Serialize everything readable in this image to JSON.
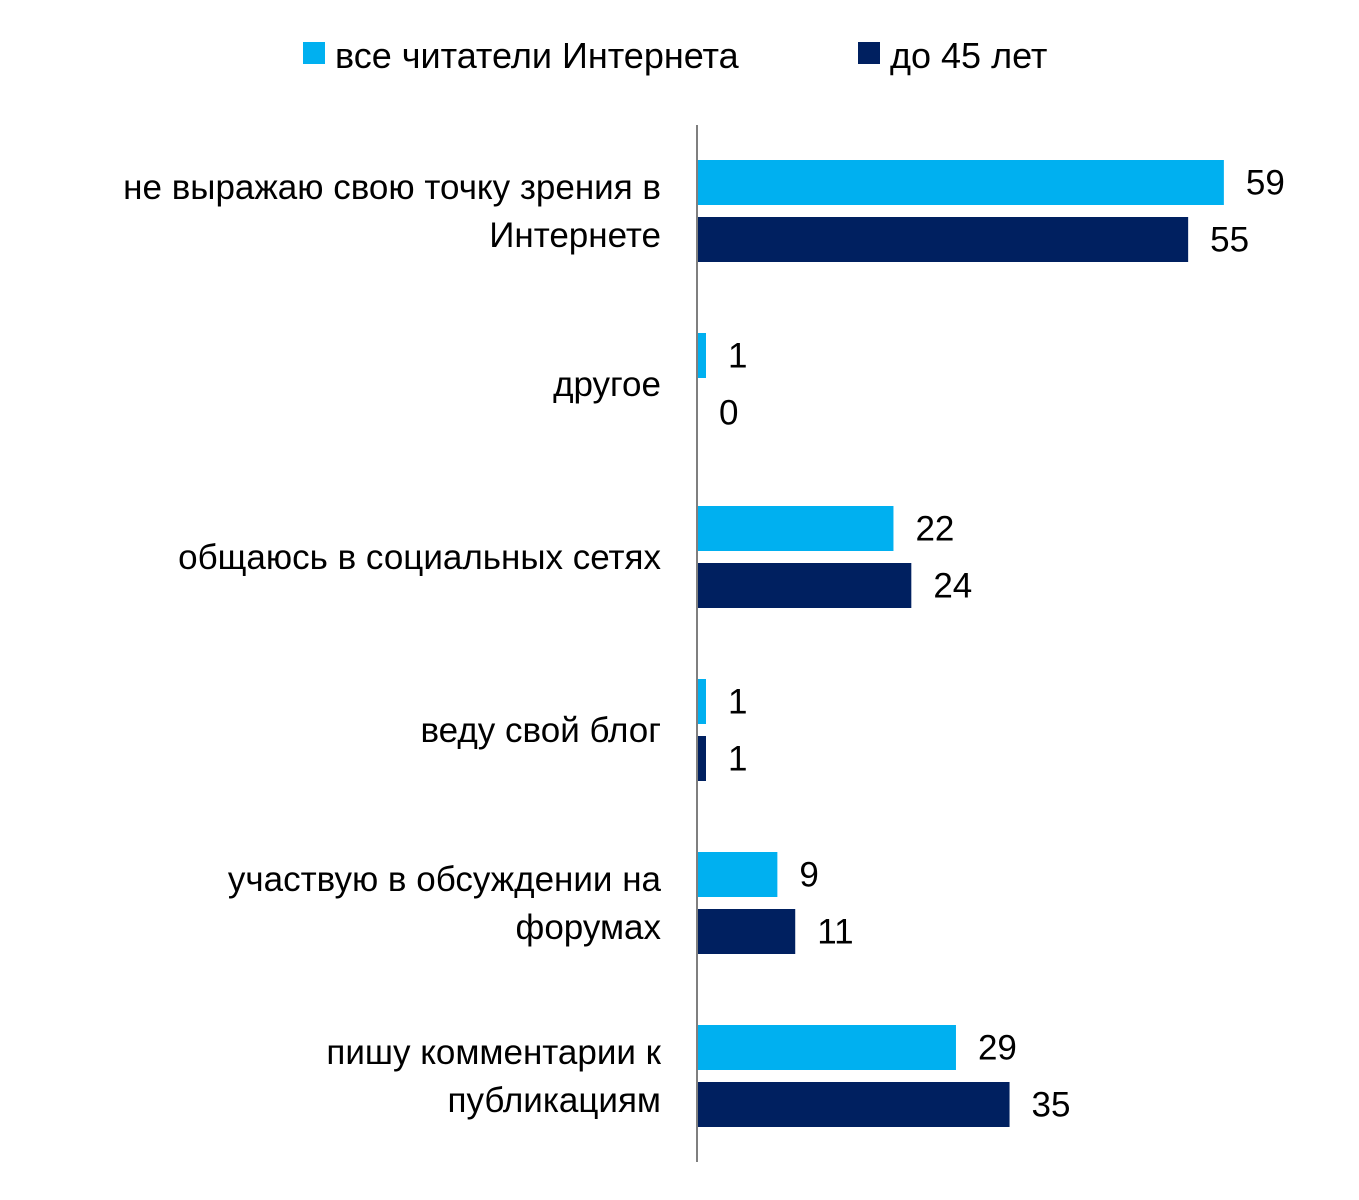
{
  "chart_data": {
    "type": "bar",
    "orientation": "horizontal",
    "categories": [
      [
        "не выражаю свою точку зрения в",
        "Интернете"
      ],
      [
        "другое"
      ],
      [
        "общаюсь в социальных сетях"
      ],
      [
        "веду свой блог"
      ],
      [
        "участвую в обсуждении на",
        "форумах"
      ],
      [
        "пишу комментарии к",
        "публикациям"
      ]
    ],
    "series": [
      {
        "name": "все читатели Интернета",
        "color": "#00b0f0",
        "values": [
          59,
          1,
          22,
          1,
          9,
          29
        ]
      },
      {
        "name": "до 45 лет",
        "color": "#002060",
        "values": [
          55,
          0,
          24,
          1,
          11,
          35
        ]
      }
    ],
    "xlim": [
      0,
      65
    ],
    "legend_position": "top-center",
    "grid": false,
    "axis_color": "#7f7f7f"
  }
}
